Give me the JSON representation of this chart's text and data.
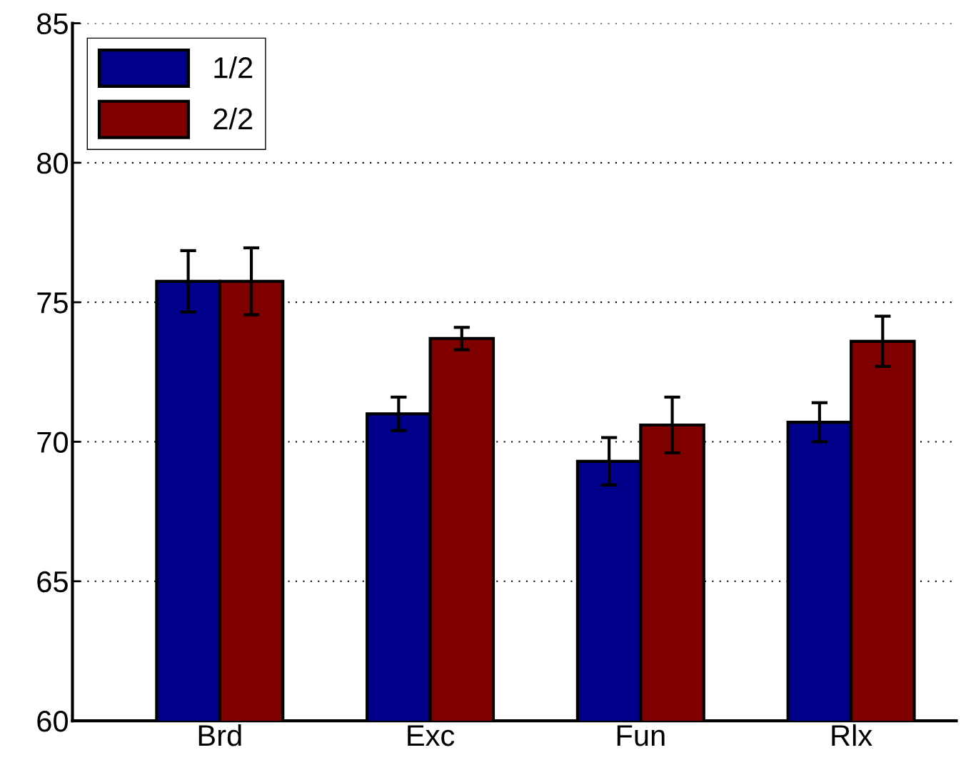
{
  "chart_data": {
    "type": "bar",
    "categories": [
      "Brd",
      "Exc",
      "Fun",
      "Rlx"
    ],
    "series": [
      {
        "name": "1/2",
        "color": "#00008b",
        "values": [
          75.75,
          71.0,
          69.3,
          70.7
        ],
        "errors": [
          1.1,
          0.6,
          0.85,
          0.7
        ]
      },
      {
        "name": "2/2",
        "color": "#800000",
        "values": [
          75.75,
          73.7,
          70.6,
          73.6
        ],
        "errors": [
          1.2,
          0.4,
          1.0,
          0.9
        ]
      }
    ],
    "ylim": [
      60,
      85
    ],
    "yticks": [
      60,
      65,
      70,
      75,
      80,
      85
    ],
    "grid": "y",
    "legend": "top left"
  }
}
